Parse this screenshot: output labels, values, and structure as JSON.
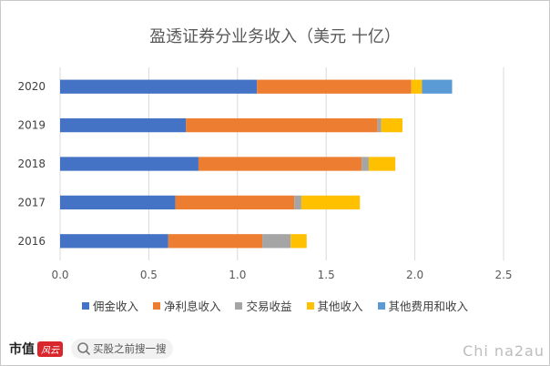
{
  "chart_data": {
    "type": "bar",
    "orientation": "horizontal",
    "stacked": true,
    "title": "盈透证券分业务收入（美元 十亿）",
    "categories": [
      "2020",
      "2019",
      "2018",
      "2017",
      "2016"
    ],
    "series": [
      {
        "name": "佣金收入",
        "color": "#4472c4",
        "values": [
          1.11,
          0.71,
          0.78,
          0.65,
          0.61
        ]
      },
      {
        "name": "净利息收入",
        "color": "#ed7d31",
        "values": [
          0.87,
          1.08,
          0.92,
          0.67,
          0.53
        ]
      },
      {
        "name": "交易收益",
        "color": "#a5a5a5",
        "values": [
          0.0,
          0.02,
          0.04,
          0.04,
          0.16
        ]
      },
      {
        "name": "其他收入",
        "color": "#ffc000",
        "values": [
          0.06,
          0.12,
          0.15,
          0.33,
          0.09
        ]
      },
      {
        "name": "其他费用和收入",
        "color": "#5b9bd5",
        "values": [
          0.17,
          0.0,
          0.0,
          0.0,
          0.0
        ]
      }
    ],
    "xlim": [
      0,
      2.5
    ],
    "xticks": [
      "0.0",
      "0.5",
      "1.0",
      "1.5",
      "2.0",
      "2.5"
    ],
    "grid": "vertical",
    "legend": "bottom"
  },
  "footer": {
    "brand": "市值",
    "brand_logo": "风云",
    "search_placeholder": "买股之前搜一搜",
    "watermark": "Chi na2au"
  }
}
